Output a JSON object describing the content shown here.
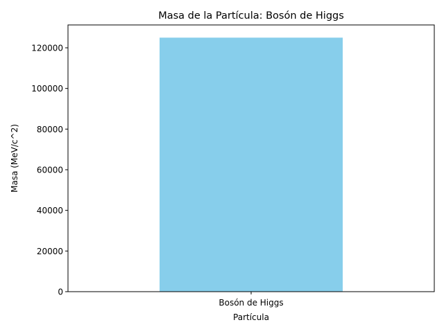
{
  "chart_data": {
    "type": "bar",
    "title": "Masa de la Partícula: Bosón de Higgs",
    "xlabel": "Partícula",
    "ylabel": "Masa (MeV/c^2)",
    "categories": [
      "Bosón de Higgs"
    ],
    "values": [
      125000
    ],
    "ylim": [
      0,
      131250
    ],
    "yticks": [
      0,
      20000,
      40000,
      60000,
      80000,
      100000,
      120000
    ],
    "grid": false,
    "legend": "none",
    "bar_color": "#87CEEB"
  }
}
